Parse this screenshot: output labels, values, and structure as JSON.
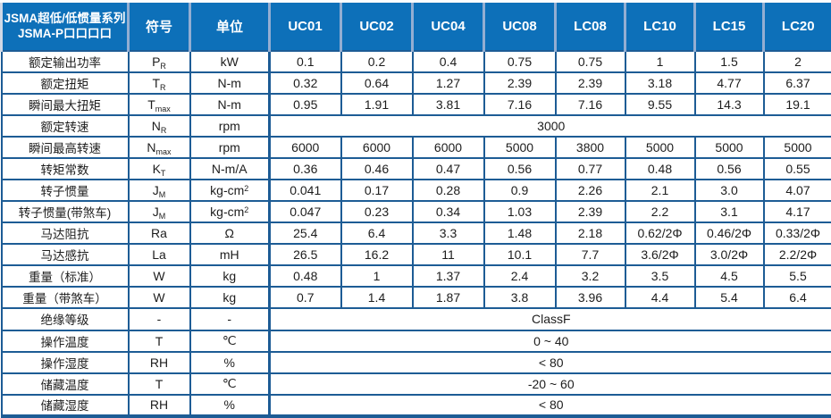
{
  "table": {
    "title_line1": "JSMA超低/低惯量系列",
    "title_line2": "JSMA-P口口口口",
    "symbol_header": "符号",
    "unit_header": "单位",
    "models": [
      "UC01",
      "UC02",
      "UC04",
      "UC08",
      "LC08",
      "LC10",
      "LC15",
      "LC20"
    ],
    "colors": {
      "header_bg": "#0d70b9",
      "header_text": "#ffffff",
      "grid_line": "#1d5c95",
      "header_divider": "#93aed2",
      "body_text": "#1d1d1d"
    },
    "rows": [
      {
        "label": "额定输出功率",
        "symbol": "P",
        "symbol_sub": "R",
        "unit": "kW",
        "values": [
          "0.1",
          "0.2",
          "0.4",
          "0.75",
          "0.75",
          "1",
          "1.5",
          "2"
        ]
      },
      {
        "label": "额定扭矩",
        "symbol": "T",
        "symbol_sub": "R",
        "unit": "N-m",
        "values": [
          "0.32",
          "0.64",
          "1.27",
          "2.39",
          "2.39",
          "3.18",
          "4.77",
          "6.37"
        ]
      },
      {
        "label": "瞬间最大扭矩",
        "symbol": "T",
        "symbol_sub": "max",
        "unit": "N-m",
        "values": [
          "0.95",
          "1.91",
          "3.81",
          "7.16",
          "7.16",
          "9.55",
          "14.3",
          "19.1"
        ]
      },
      {
        "label": "额定转速",
        "symbol": "N",
        "symbol_sub": "R",
        "unit": "rpm",
        "merged": "3000"
      },
      {
        "label": "瞬间最高转速",
        "symbol": "N",
        "symbol_sub": "max",
        "unit": "rpm",
        "values": [
          "6000",
          "6000",
          "6000",
          "5000",
          "3800",
          "5000",
          "5000",
          "5000"
        ]
      },
      {
        "label": "转矩常数",
        "symbol": "K",
        "symbol_sub": "T",
        "unit": "N-m/A",
        "values": [
          "0.36",
          "0.46",
          "0.47",
          "0.56",
          "0.77",
          "0.48",
          "0.56",
          "0.55"
        ]
      },
      {
        "label": "转子惯量",
        "symbol": "J",
        "symbol_sub": "M",
        "unit": "kg-cm",
        "unit_sup": "2",
        "values": [
          "0.041",
          "0.17",
          "0.28",
          "0.9",
          "2.26",
          "2.1",
          "3.0",
          "4.07"
        ]
      },
      {
        "label": "转子惯量(带煞车)",
        "symbol": "J",
        "symbol_sub": "M",
        "unit": "kg-cm",
        "unit_sup": "2",
        "values": [
          "0.047",
          "0.23",
          "0.34",
          "1.03",
          "2.39",
          "2.2",
          "3.1",
          "4.17"
        ]
      },
      {
        "label": "马达阻抗",
        "symbol": "Ra",
        "unit": "Ω",
        "values": [
          "25.4",
          "6.4",
          "3.3",
          "1.48",
          "2.18",
          "0.62/2Φ",
          "0.46/2Φ",
          "0.33/2Φ"
        ]
      },
      {
        "label": "马达感抗",
        "symbol": "La",
        "unit": "mH",
        "values": [
          "26.5",
          "16.2",
          "11",
          "10.1",
          "7.7",
          "3.6/2Φ",
          "3.0/2Φ",
          "2.2/2Φ"
        ]
      },
      {
        "label": "重量（标准）",
        "symbol": "W",
        "unit": "kg",
        "values": [
          "0.48",
          "1",
          "1.37",
          "2.4",
          "3.2",
          "3.5",
          "4.5",
          "5.5"
        ]
      },
      {
        "label": "重量（带煞车）",
        "symbol": "W",
        "unit": "kg",
        "values": [
          "0.7",
          "1.4",
          "1.87",
          "3.8",
          "3.96",
          "4.4",
          "5.4",
          "6.4"
        ]
      },
      {
        "label": "绝缘等级",
        "symbol": "-",
        "unit": "-",
        "merged": "ClassF"
      },
      {
        "label": "操作温度",
        "symbol": "T",
        "unit": "℃",
        "merged": "0 ~ 40"
      },
      {
        "label": "操作湿度",
        "symbol": "RH",
        "unit": "%",
        "merged": "< 80"
      },
      {
        "label": "储藏温度",
        "symbol": "T",
        "unit": "℃",
        "merged": "-20 ~ 60"
      },
      {
        "label": "储藏湿度",
        "symbol": "RH",
        "unit": "%",
        "merged": "< 80"
      }
    ]
  }
}
